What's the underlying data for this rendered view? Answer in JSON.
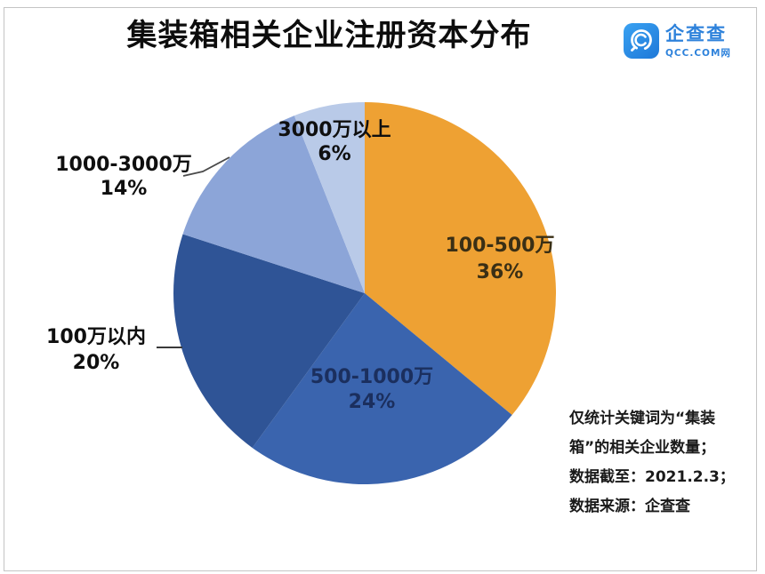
{
  "header": {
    "title": "集装箱相关企业注册资本分布",
    "logo": {
      "brand": "企查查",
      "domain": "QCC.COM网",
      "brand_color": "#2E82DB",
      "icon": "qcc-magnifier-icon"
    }
  },
  "chart_data": {
    "type": "pie",
    "title": "集装箱相关企业注册资本分布",
    "categories": [
      "100-500万",
      "500-1000万",
      "100万以内",
      "1000-3000万",
      "3000万以上"
    ],
    "values": [
      36,
      24,
      20,
      14,
      6
    ],
    "unit": "percent",
    "pct_labels": [
      "36%",
      "24%",
      "20%",
      "14%",
      "6%"
    ],
    "colors": [
      "#EEA133",
      "#3A64AE",
      "#2F5496",
      "#8CA5D8",
      "#B9CAE8"
    ],
    "start_angle_deg": 0,
    "direction": "clockwise",
    "legend_position": "none",
    "grid": false
  },
  "annotation": {
    "lines": [
      "仅统计关键词为“集装",
      "箱”的相关企业数量；",
      "数据截至：2021.2.3；",
      "数据来源：企查查"
    ]
  }
}
